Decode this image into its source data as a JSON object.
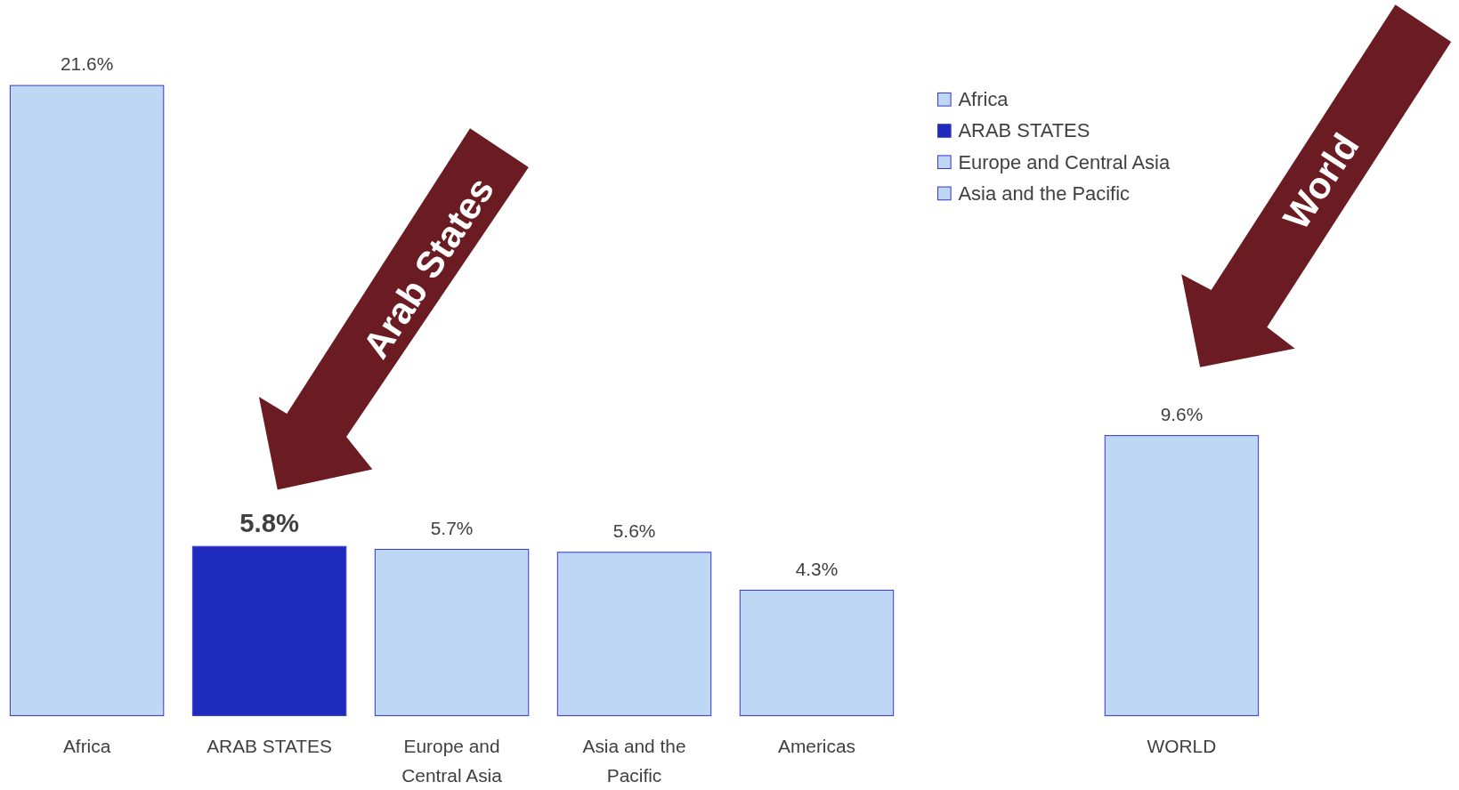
{
  "chart_data": {
    "type": "bar",
    "legend": "top right",
    "categories": [
      "Africa",
      "ARAB STATES",
      "Europe and Central Asia",
      "Asia and the Pacific",
      "Americas",
      null,
      "WORLD"
    ],
    "series": [
      {
        "name": "Africa",
        "color": "#bdd7f5",
        "values": [
          21.6,
          null,
          null,
          null,
          null,
          null,
          null
        ],
        "value_labels": [
          "21.6%",
          null,
          null,
          null,
          null,
          null,
          null
        ]
      },
      {
        "name": "ARAB STATES",
        "color": "#1f2bbd",
        "values": [
          null,
          5.8,
          null,
          null,
          null,
          null,
          null
        ],
        "value_labels": [
          null,
          "5.8%",
          null,
          null,
          null,
          null,
          null
        ]
      },
      {
        "name": "Europe and Central Asia",
        "color": "#bdd7f5",
        "values": [
          null,
          null,
          5.7,
          null,
          null,
          null,
          null
        ],
        "value_labels": [
          null,
          null,
          "5.7%",
          null,
          null,
          null,
          null
        ]
      },
      {
        "name": "Asia and the Pacific",
        "color": "#bdd7f5",
        "values": [
          null,
          null,
          null,
          5.6,
          null,
          null,
          null
        ],
        "value_labels": [
          null,
          null,
          null,
          "5.6%",
          null,
          null,
          null
        ]
      },
      {
        "color": "#bdd7f5",
        "values": [
          null,
          null,
          null,
          null,
          4.3,
          null,
          9.6
        ],
        "value_labels": [
          null,
          null,
          null,
          null,
          "4.3%",
          null,
          "9.6%"
        ]
      }
    ],
    "annotations": [
      "Arab States",
      "World"
    ]
  }
}
